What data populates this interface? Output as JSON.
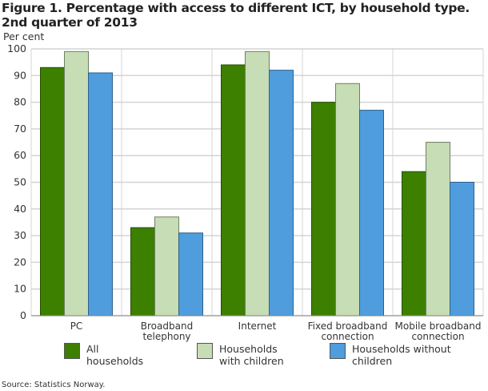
{
  "chart_data": {
    "type": "bar",
    "title": "Figure 1. Percentage with access to different ICT, by household type. 2nd quarter of 2013",
    "title_lines": [
      "Figure 1. Percentage with access to different ICT, by household type.",
      "2nd quarter of 2013"
    ],
    "ylabel": "Per cent",
    "ylim": [
      0,
      100
    ],
    "yticks": [
      0,
      10,
      20,
      30,
      40,
      50,
      60,
      70,
      80,
      90,
      100
    ],
    "grid": true,
    "legend_position": "bottom",
    "categories": [
      [
        "PC"
      ],
      [
        "Broadband",
        "telephony"
      ],
      [
        "Internet"
      ],
      [
        "Fixed broadband",
        "connection"
      ],
      [
        "Mobile broadband",
        "connection"
      ]
    ],
    "series": [
      {
        "name": "All households",
        "label_lines": [
          "All",
          "households"
        ],
        "color": "#3d8000",
        "values": [
          93,
          33,
          94,
          80,
          54
        ]
      },
      {
        "name": "Households with children",
        "label_lines": [
          "Households",
          "with children"
        ],
        "color": "#c7ddb5",
        "values": [
          99,
          37,
          99,
          87,
          65
        ]
      },
      {
        "name": "Households without children",
        "label_lines": [
          "Households without",
          "children"
        ],
        "color": "#4f9ddd",
        "values": [
          91,
          31,
          92,
          77,
          50
        ]
      }
    ],
    "source": "Source: Statistics Norway."
  }
}
